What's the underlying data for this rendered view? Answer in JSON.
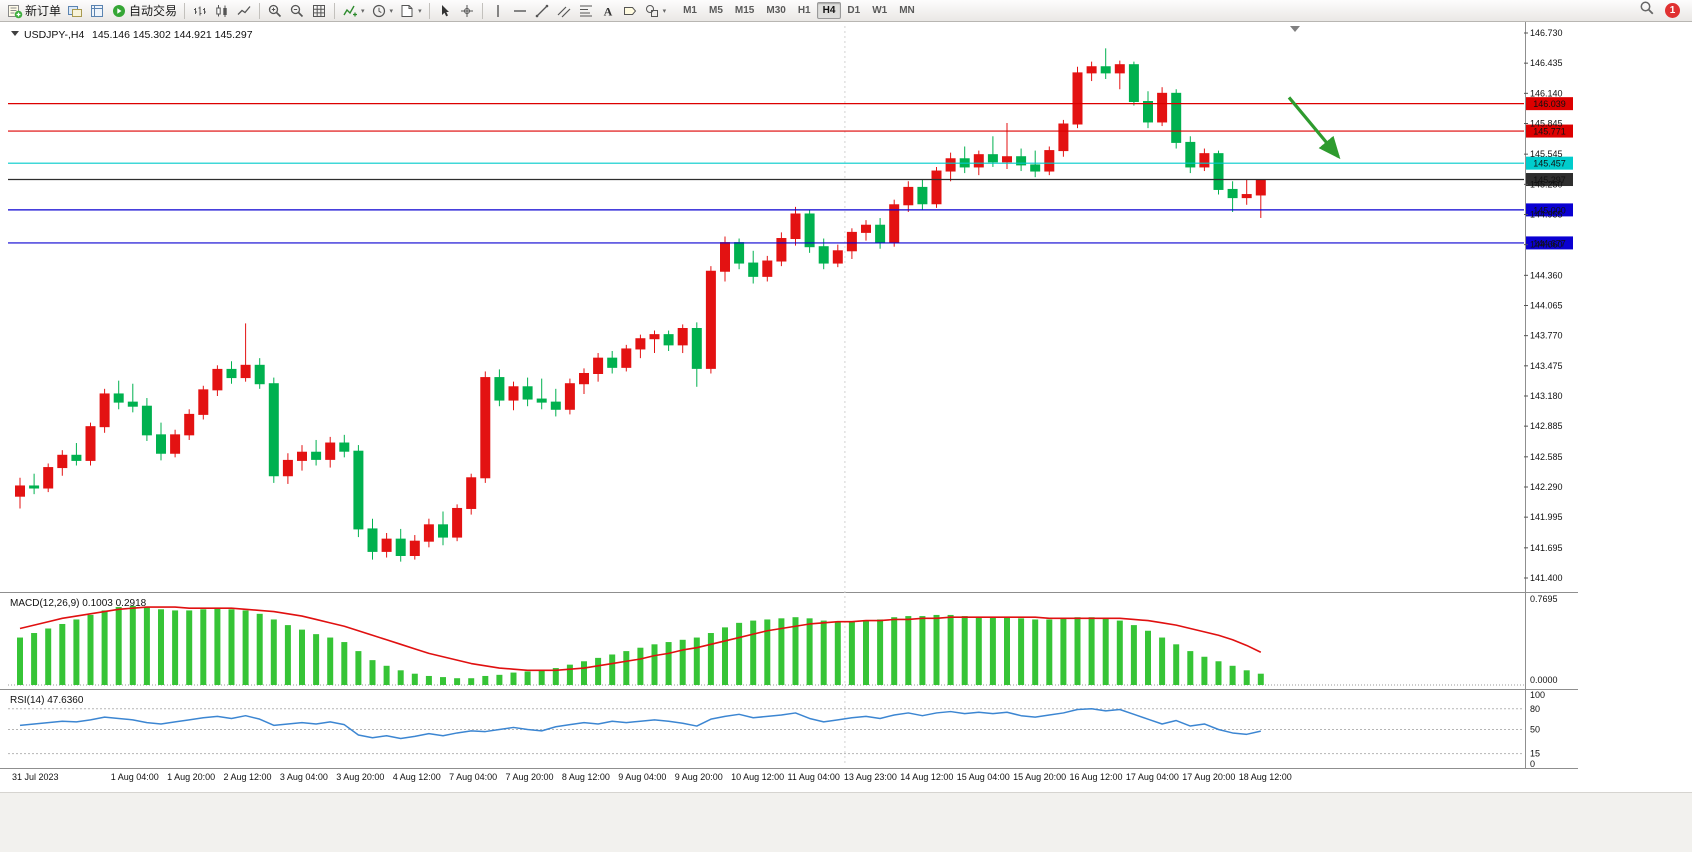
{
  "colors": {
    "candle_up": "#e31212",
    "candle_down": "#00b14f",
    "notification_badge": "#e03131"
  },
  "toolbar": {
    "groups": [
      {
        "items": [
          {
            "name": "new-order-button",
            "icon": "new-order",
            "label": "新订单"
          },
          {
            "name": "charts-profile-button",
            "icon": "charts"
          },
          {
            "name": "market-watch-button",
            "icon": "book"
          },
          {
            "name": "auto-trading-button",
            "icon": "autotrade",
            "label": "自动交易"
          }
        ]
      },
      {
        "items": [
          {
            "name": "bar-chart-button",
            "icon": "bars"
          },
          {
            "name": "candlestick-chart-button",
            "icon": "candles"
          },
          {
            "name": "line-chart-button",
            "icon": "line"
          }
        ]
      },
      {
        "items": [
          {
            "name": "zoom-in-button",
            "icon": "zoom-in"
          },
          {
            "name": "zoom-out-button",
            "icon": "zoom-out"
          },
          {
            "name": "tile-windows-button",
            "icon": "grid"
          }
        ]
      },
      {
        "items": [
          {
            "name": "indicators-button",
            "icon": "indicator",
            "dropdown": true
          },
          {
            "name": "periods-button",
            "icon": "clock",
            "dropdown": true
          },
          {
            "name": "templates-button",
            "icon": "template",
            "dropdown": true
          }
        ]
      },
      {
        "items": [
          {
            "name": "cursor-button",
            "icon": "cursor"
          },
          {
            "name": "crosshair-button",
            "icon": "crosshair"
          }
        ]
      },
      {
        "items": [
          {
            "name": "vertical-line-button",
            "icon": "vline"
          },
          {
            "name": "horizontal-line-button",
            "icon": "hline"
          },
          {
            "name": "trendline-button",
            "icon": "trend"
          },
          {
            "name": "equidistant-channel-button",
            "icon": "channel"
          },
          {
            "name": "fibonacci-button",
            "icon": "fibo"
          },
          {
            "name": "text-button",
            "icon": "text"
          },
          {
            "name": "text-label-button",
            "icon": "label"
          },
          {
            "name": "shapes-button",
            "icon": "shapes",
            "dropdown": true
          }
        ]
      }
    ],
    "timeframes": [
      "M1",
      "M5",
      "M15",
      "M30",
      "H1",
      "H4",
      "D1",
      "W1",
      "MN"
    ],
    "active_timeframe": "H4",
    "notification_count": "1"
  },
  "chart": {
    "title": "USDJPY-,H4",
    "ohlc": "145.146 145.302 144.921 145.297"
  },
  "chart_data": {
    "type": "candlestick",
    "symbol": "USDJPY",
    "timeframe": "H4",
    "ylim": [
      141.4,
      146.73
    ],
    "y_axis_ticks": [
      "146.730",
      "146.435",
      "146.140",
      "145.845",
      "145.545",
      "145.250",
      "144.955",
      "144.660",
      "144.360",
      "144.065",
      "143.770",
      "143.475",
      "143.180",
      "142.885",
      "142.585",
      "142.290",
      "141.995",
      "141.695",
      "141.400"
    ],
    "current_price": "145.297",
    "weekend_separator_before_bar": 59,
    "horizontal_lines": [
      {
        "price": 146.039,
        "label": "146.039",
        "color": "#dd0000",
        "text_color": "#ffffff"
      },
      {
        "price": 145.771,
        "label": "145.771",
        "color": "#dd0000",
        "text_color": "#ffffff"
      },
      {
        "price": 145.457,
        "label": "145.457",
        "color": "#00cccc",
        "text_color": "#003333"
      },
      {
        "price": 145.297,
        "label": "145.297",
        "color": "#2e2e2e",
        "text_color": "#ffffff",
        "role": "current-price"
      },
      {
        "price": 145.0,
        "label": "145.000",
        "color": "#0a00d2",
        "text_color": "#ffffff"
      },
      {
        "price": 144.677,
        "label": "144.677",
        "color": "#0a00d2",
        "text_color": "#ffffff"
      }
    ],
    "arrow_annotation": {
      "bar_from": 90,
      "price_from": 146.1,
      "bar_to": 93.5,
      "price_to": 145.52,
      "color": "#2e9b2e"
    },
    "x_labels": [
      [
        0,
        "31 Jul 2023"
      ],
      [
        7,
        "1 Aug 04:00"
      ],
      [
        11,
        "1 Aug 20:00"
      ],
      [
        15,
        "2 Aug 12:00"
      ],
      [
        19,
        "3 Aug 04:00"
      ],
      [
        23,
        "3 Aug 20:00"
      ],
      [
        27,
        "4 Aug 12:00"
      ],
      [
        31,
        "7 Aug 04:00"
      ],
      [
        35,
        "7 Aug 20:00"
      ],
      [
        39,
        "8 Aug 12:00"
      ],
      [
        43,
        "9 Aug 04:00"
      ],
      [
        47,
        "9 Aug 20:00"
      ],
      [
        51,
        "10 Aug 12:00"
      ],
      [
        55,
        "11 Aug 04:00"
      ],
      [
        59,
        "13 Aug 23:00"
      ],
      [
        63,
        "14 Aug 12:00"
      ],
      [
        67,
        "15 Aug 04:00"
      ],
      [
        71,
        "15 Aug 20:00"
      ],
      [
        75,
        "16 Aug 12:00"
      ],
      [
        79,
        "17 Aug 04:00"
      ],
      [
        83,
        "17 Aug 20:00"
      ],
      [
        87,
        "18 Aug 12:00"
      ]
    ],
    "bars_ohlc": [
      [
        142.2,
        142.38,
        142.08,
        142.3
      ],
      [
        142.3,
        142.42,
        142.22,
        142.28
      ],
      [
        142.28,
        142.52,
        142.24,
        142.48
      ],
      [
        142.48,
        142.65,
        142.4,
        142.6
      ],
      [
        142.6,
        142.72,
        142.5,
        142.55
      ],
      [
        142.55,
        142.92,
        142.5,
        142.88
      ],
      [
        142.88,
        143.25,
        142.82,
        143.2
      ],
      [
        143.2,
        143.33,
        143.05,
        143.12
      ],
      [
        143.12,
        143.3,
        143.02,
        143.08
      ],
      [
        143.08,
        143.16,
        142.74,
        142.8
      ],
      [
        142.8,
        142.92,
        142.55,
        142.62
      ],
      [
        142.62,
        142.85,
        142.58,
        142.8
      ],
      [
        142.8,
        143.05,
        142.75,
        143.0
      ],
      [
        143.0,
        143.28,
        142.95,
        143.24
      ],
      [
        143.24,
        143.48,
        143.18,
        143.44
      ],
      [
        143.44,
        143.52,
        143.3,
        143.36
      ],
      [
        143.36,
        143.89,
        143.32,
        143.48
      ],
      [
        143.48,
        143.55,
        143.25,
        143.3
      ],
      [
        143.3,
        143.36,
        142.33,
        142.4
      ],
      [
        142.4,
        142.62,
        142.32,
        142.55
      ],
      [
        142.55,
        142.7,
        142.45,
        142.63
      ],
      [
        142.63,
        142.75,
        142.5,
        142.56
      ],
      [
        142.56,
        142.78,
        142.48,
        142.72
      ],
      [
        142.72,
        142.8,
        142.58,
        142.64
      ],
      [
        142.64,
        142.7,
        141.8,
        141.88
      ],
      [
        141.88,
        141.98,
        141.58,
        141.66
      ],
      [
        141.66,
        141.84,
        141.6,
        141.78
      ],
      [
        141.78,
        141.88,
        141.56,
        141.62
      ],
      [
        141.62,
        141.82,
        141.58,
        141.76
      ],
      [
        141.76,
        141.98,
        141.7,
        141.92
      ],
      [
        141.92,
        142.05,
        141.72,
        141.8
      ],
      [
        141.8,
        142.12,
        141.76,
        142.08
      ],
      [
        142.08,
        142.42,
        142.02,
        142.38
      ],
      [
        142.38,
        143.42,
        142.33,
        143.36
      ],
      [
        143.36,
        143.44,
        143.08,
        143.14
      ],
      [
        143.14,
        143.32,
        143.04,
        143.27
      ],
      [
        143.27,
        143.36,
        143.08,
        143.15
      ],
      [
        143.15,
        143.35,
        143.05,
        143.12
      ],
      [
        143.12,
        143.25,
        142.98,
        143.05
      ],
      [
        143.05,
        143.35,
        143.0,
        143.3
      ],
      [
        143.3,
        143.45,
        143.2,
        143.4
      ],
      [
        143.4,
        143.6,
        143.32,
        143.55
      ],
      [
        143.55,
        143.62,
        143.4,
        143.46
      ],
      [
        143.46,
        143.68,
        143.42,
        143.64
      ],
      [
        143.64,
        143.78,
        143.55,
        143.74
      ],
      [
        143.74,
        143.82,
        143.6,
        143.78
      ],
      [
        143.78,
        143.82,
        143.62,
        143.68
      ],
      [
        143.68,
        143.88,
        143.6,
        143.84
      ],
      [
        143.84,
        143.9,
        143.27,
        143.45
      ],
      [
        143.45,
        144.45,
        143.4,
        144.4
      ],
      [
        144.4,
        144.74,
        144.3,
        144.68
      ],
      [
        144.68,
        144.72,
        144.42,
        144.48
      ],
      [
        144.48,
        144.6,
        144.28,
        144.35
      ],
      [
        144.35,
        144.55,
        144.3,
        144.5
      ],
      [
        144.5,
        144.78,
        144.45,
        144.72
      ],
      [
        144.72,
        145.03,
        144.65,
        144.96
      ],
      [
        144.96,
        145.0,
        144.58,
        144.64
      ],
      [
        144.64,
        144.72,
        144.42,
        144.48
      ],
      [
        144.48,
        144.66,
        144.44,
        144.6
      ],
      [
        144.6,
        144.82,
        144.52,
        144.78
      ],
      [
        144.78,
        144.9,
        144.7,
        144.85
      ],
      [
        144.85,
        144.92,
        144.62,
        144.68
      ],
      [
        144.68,
        145.1,
        144.64,
        145.05
      ],
      [
        145.05,
        145.28,
        144.98,
        145.22
      ],
      [
        145.22,
        145.3,
        145.0,
        145.06
      ],
      [
        145.06,
        145.42,
        145.02,
        145.38
      ],
      [
        145.38,
        145.56,
        145.28,
        145.5
      ],
      [
        145.5,
        145.62,
        145.36,
        145.42
      ],
      [
        145.42,
        145.58,
        145.34,
        145.54
      ],
      [
        145.54,
        145.72,
        145.42,
        145.47
      ],
      [
        145.47,
        145.85,
        145.4,
        145.52
      ],
      [
        145.52,
        145.6,
        145.38,
        145.44
      ],
      [
        145.44,
        145.58,
        145.32,
        145.38
      ],
      [
        145.38,
        145.62,
        145.34,
        145.58
      ],
      [
        145.58,
        145.88,
        145.52,
        145.84
      ],
      [
        145.84,
        146.4,
        145.8,
        146.34
      ],
      [
        146.34,
        146.45,
        146.26,
        146.4
      ],
      [
        146.4,
        146.58,
        146.28,
        146.34
      ],
      [
        146.34,
        146.46,
        146.18,
        146.42
      ],
      [
        146.42,
        146.45,
        146.02,
        146.06
      ],
      [
        146.06,
        146.16,
        145.8,
        145.86
      ],
      [
        145.86,
        146.2,
        145.82,
        146.14
      ],
      [
        146.14,
        146.18,
        145.6,
        145.66
      ],
      [
        145.66,
        145.72,
        145.36,
        145.42
      ],
      [
        145.42,
        145.6,
        145.38,
        145.55
      ],
      [
        145.55,
        145.58,
        145.15,
        145.2
      ],
      [
        145.2,
        145.28,
        144.98,
        145.12
      ],
      [
        145.12,
        145.3,
        145.05,
        145.15
      ],
      [
        145.146,
        145.302,
        144.921,
        145.297
      ]
    ],
    "indicators": {
      "macd": {
        "label_full": "MACD(12,26,9) 0.1003 0.2918",
        "axis_max": "0.7695",
        "axis_min": "0.0000",
        "hist_color": "#36c436",
        "signal_color": "#e01010",
        "histogram": [
          0.42,
          0.46,
          0.5,
          0.54,
          0.58,
          0.62,
          0.66,
          0.69,
          0.7,
          0.69,
          0.67,
          0.66,
          0.66,
          0.67,
          0.68,
          0.67,
          0.66,
          0.63,
          0.58,
          0.53,
          0.49,
          0.45,
          0.42,
          0.38,
          0.3,
          0.22,
          0.17,
          0.13,
          0.1,
          0.08,
          0.07,
          0.06,
          0.06,
          0.08,
          0.09,
          0.11,
          0.12,
          0.13,
          0.15,
          0.18,
          0.21,
          0.24,
          0.27,
          0.3,
          0.33,
          0.36,
          0.38,
          0.4,
          0.42,
          0.46,
          0.51,
          0.55,
          0.57,
          0.58,
          0.59,
          0.6,
          0.59,
          0.57,
          0.56,
          0.56,
          0.57,
          0.58,
          0.6,
          0.61,
          0.61,
          0.62,
          0.62,
          0.61,
          0.6,
          0.6,
          0.6,
          0.59,
          0.58,
          0.58,
          0.59,
          0.6,
          0.6,
          0.59,
          0.57,
          0.53,
          0.48,
          0.42,
          0.36,
          0.3,
          0.25,
          0.21,
          0.17,
          0.13,
          0.1
        ],
        "signal": [
          0.5,
          0.53,
          0.56,
          0.59,
          0.61,
          0.63,
          0.65,
          0.67,
          0.68,
          0.69,
          0.69,
          0.69,
          0.68,
          0.68,
          0.68,
          0.68,
          0.67,
          0.66,
          0.65,
          0.63,
          0.61,
          0.58,
          0.55,
          0.52,
          0.48,
          0.44,
          0.4,
          0.36,
          0.32,
          0.28,
          0.25,
          0.22,
          0.19,
          0.17,
          0.15,
          0.14,
          0.13,
          0.13,
          0.13,
          0.14,
          0.15,
          0.17,
          0.19,
          0.21,
          0.23,
          0.26,
          0.28,
          0.31,
          0.33,
          0.36,
          0.39,
          0.42,
          0.45,
          0.48,
          0.5,
          0.52,
          0.54,
          0.55,
          0.56,
          0.56,
          0.57,
          0.57,
          0.58,
          0.58,
          0.59,
          0.59,
          0.6,
          0.6,
          0.6,
          0.6,
          0.6,
          0.6,
          0.6,
          0.59,
          0.59,
          0.59,
          0.59,
          0.59,
          0.59,
          0.58,
          0.57,
          0.55,
          0.53,
          0.5,
          0.47,
          0.44,
          0.4,
          0.35,
          0.29
        ]
      },
      "rsi": {
        "label_full": "RSI(14) 47.6360",
        "line_color": "#3c86d2",
        "levels": [
          100,
          80,
          50,
          15,
          0
        ],
        "series": [
          56,
          58,
          60,
          62,
          61,
          64,
          68,
          66,
          64,
          60,
          58,
          61,
          64,
          67,
          69,
          66,
          70,
          65,
          56,
          58,
          60,
          58,
          61,
          57,
          42,
          38,
          41,
          37,
          40,
          44,
          41,
          45,
          48,
          47,
          50,
          53,
          50,
          48,
          54,
          57,
          60,
          58,
          62,
          60,
          62,
          64,
          62,
          59,
          55,
          65,
          69,
          72,
          67,
          69,
          71,
          74,
          66,
          61,
          64,
          67,
          69,
          66,
          71,
          74,
          70,
          74,
          76,
          73,
          75,
          73,
          75,
          70,
          68,
          71,
          74,
          79,
          80,
          77,
          79,
          72,
          65,
          58,
          63,
          55,
          58,
          50,
          45,
          43,
          47.6
        ]
      }
    }
  }
}
